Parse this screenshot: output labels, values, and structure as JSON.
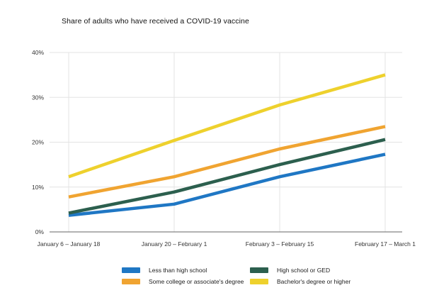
{
  "chart_data": {
    "type": "line",
    "title": "Share of adults who have received a COVID-19 vaccine",
    "xlabel": "",
    "ylabel": "",
    "categories": [
      "January 6 – January 18",
      "January 20 – February 1",
      "February 3 – February 15",
      "February 17 – March 1"
    ],
    "ylim": [
      0,
      40
    ],
    "yticks": [
      0,
      10,
      20,
      30,
      40
    ],
    "ytick_labels": [
      "0%",
      "10%",
      "20%",
      "30%",
      "40%"
    ],
    "grid": true,
    "legend_placement": "bottom",
    "series": [
      {
        "name": "Less than high school",
        "color": "#1f77c4",
        "values": [
          3.7,
          6.2,
          12.3,
          17.3
        ]
      },
      {
        "name": "High school or GED",
        "color": "#2c5f4e",
        "values": [
          4.2,
          8.9,
          15.0,
          20.6
        ]
      },
      {
        "name": "Some college or associate's degree",
        "color": "#f0a431",
        "values": [
          7.8,
          12.3,
          18.5,
          23.5
        ]
      },
      {
        "name": "Bachelor's degree or higher",
        "color": "#eed12d",
        "values": [
          12.3,
          20.4,
          28.3,
          35.0
        ]
      }
    ]
  }
}
